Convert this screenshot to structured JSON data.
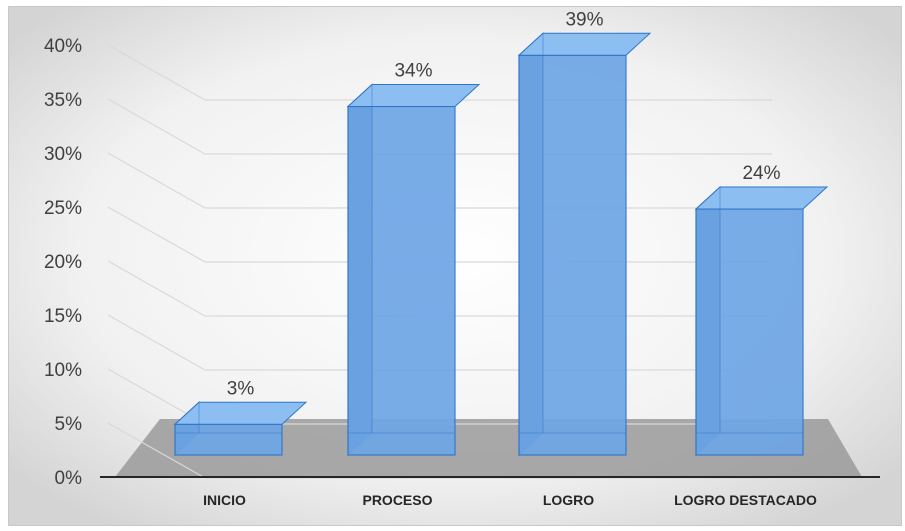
{
  "chart_data": {
    "type": "bar",
    "style": "3d-column",
    "categories": [
      "INICIO",
      "PROCESO",
      "LOGRO",
      "LOGRO DESTACADO"
    ],
    "values": [
      3,
      34,
      39,
      24
    ],
    "value_labels": [
      "3%",
      "34%",
      "39%",
      "24%"
    ],
    "y_ticks": [
      "0%",
      "5%",
      "10%",
      "15%",
      "20%",
      "25%",
      "30%",
      "35%",
      "40%"
    ],
    "ylim": [
      0,
      40
    ],
    "grid": true,
    "legend": "none",
    "colors": {
      "bar_front": "#6ea6e6",
      "bar_side": "#3f6fa8",
      "bar_top": "#8cbef2",
      "bar_edge": "#2e75c8",
      "floor": "#9a9a9a",
      "grid": "#d9d9d9",
      "background_center": "#ffffff",
      "background_edge": "#d6d6d6"
    }
  }
}
